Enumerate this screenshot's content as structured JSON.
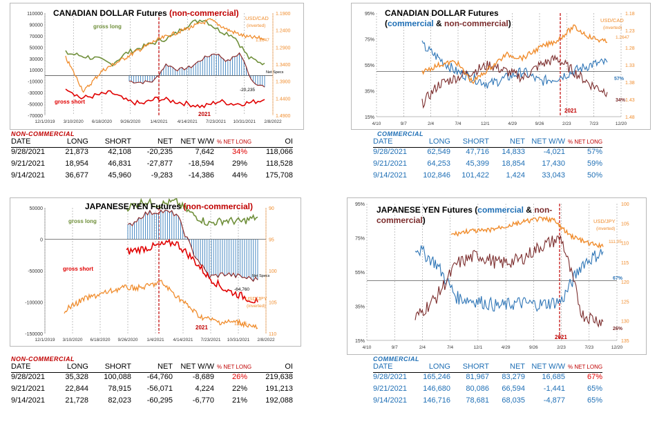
{
  "colors": {
    "gross_long": "#6f8f3a",
    "gross_short": "#e00000",
    "net": "#8a2b2b",
    "fx": "#f08c2c",
    "net_bar": "#1f6fb5",
    "commercial": "#2e75b6",
    "noncommercial": "#7b2c2c",
    "line_2021": "#c00000"
  },
  "cad_nc": {
    "title_black": "CANADIAN DOLLAR Futures ",
    "title_red": "(non-commercial)",
    "label_long": "gross long",
    "label_short": "gross short",
    "label_net": "Net Specs",
    "label_year": "2021",
    "label_fx": "USD/CAD",
    "label_fx_sub": "(inverted)",
    "fx_last": "1.2647",
    "net_last": "-20,235"
  },
  "cad_c": {
    "title_1": "CANADIAN DOLLAR Futures",
    "title_2a": "(",
    "title_comm": "commercial",
    "title_amp": " & ",
    "title_nc": "non-commercial",
    "title_2b": ")",
    "label_fx": "USD/CAD",
    "label_fx_sub": "(inverted)",
    "fx_last": "1.2647",
    "label_year": "2021",
    "comm_last": "57%",
    "nc_last": "34%"
  },
  "jpy_nc": {
    "title_black": "JAPANESE YEN Futures ",
    "title_red": "(non-commercial)",
    "label_long": "gross long",
    "label_short": "gross short",
    "label_net": "Net Specs",
    "label_year": "2021",
    "label_fx": "USD/JPY",
    "label_fx_sub": "(inverted)",
    "fx_last": "111.05",
    "net_last": "-64,760"
  },
  "jpy_c": {
    "title_1a": "JAPANESE YEN Futures  (",
    "title_comm": "commercial",
    "title_amp": " & ",
    "title_nc1": "non-",
    "title_nc2": "commercial",
    "title_2b": ")",
    "label_fx": "USD/JPY",
    "label_fx_sub": "(inverted)",
    "fx_last": "111.05",
    "label_year": "2021",
    "comm_last": "67%",
    "nc_last": "26%"
  },
  "chart_data": [
    {
      "type": "line",
      "title": "CANADIAN DOLLAR Futures (non-commercial)",
      "x_ticks": [
        "12/1/2019",
        "3/10/2020",
        "6/18/2020",
        "9/26/2020",
        "1/4/2021",
        "4/14/2021",
        "7/23/2021",
        "10/31/2021",
        "2/8/2022"
      ],
      "y_ticks": [
        "110000",
        "90000",
        "70000",
        "50000",
        "30000",
        "10000",
        "-10000",
        "-30000",
        "-50000",
        "-70000"
      ],
      "y2_ticks": [
        "1.1900",
        "1.2400",
        "1.2900",
        "1.3400",
        "1.3900",
        "1.4400",
        "1.4900"
      ],
      "ylim": [
        -70000,
        110000
      ],
      "y2lim": [
        1.19,
        1.49
      ],
      "y2_inverted": true,
      "series": [
        {
          "name": "gross long",
          "y": [
            40000,
            35000,
            30000,
            20000,
            40000,
            50000,
            60000,
            70000,
            90000,
            100000,
            80000,
            70000,
            30000,
            21873
          ]
        },
        {
          "name": "gross short",
          "y": [
            -20000,
            -40000,
            -35000,
            -30000,
            -45000,
            -50000,
            -40000,
            -45000,
            -50000,
            -55000,
            -45000,
            -50000,
            -48000,
            -42108
          ]
        },
        {
          "name": "Net Specs",
          "y": [
            -10000,
            -12000,
            -10000,
            20000,
            10000,
            15000,
            30000,
            40000,
            25000,
            40000,
            -10000,
            -20235
          ]
        },
        {
          "name": "USD/CAD",
          "y": [
            1.32,
            1.42,
            1.36,
            1.33,
            1.3,
            1.27,
            1.25,
            1.23,
            1.21,
            1.24,
            1.26,
            1.2647
          ]
        }
      ]
    },
    {
      "type": "line",
      "title": "CANADIAN DOLLAR Futures (commercial & non-commercial)",
      "x_ticks": [
        "4/10",
        "9/7",
        "2/4",
        "7/4",
        "12/1",
        "4/29",
        "9/26",
        "2/23",
        "7/23",
        "12/20"
      ],
      "y_ticks": [
        "95%",
        "75%",
        "55%",
        "35%",
        "15%"
      ],
      "y2_ticks": [
        "1.18",
        "1.23",
        "1.28",
        "1.33",
        "1.38",
        "1.43",
        "1.48"
      ],
      "ylim": [
        15,
        95
      ],
      "y2lim": [
        1.18,
        1.48
      ],
      "y2_inverted": true,
      "series": [
        {
          "name": "commercial",
          "y": [
            70,
            60,
            50,
            45,
            40,
            45,
            50,
            42,
            45,
            50,
            55,
            57
          ]
        },
        {
          "name": "non-commercial",
          "y": [
            25,
            40,
            45,
            50,
            55,
            50,
            45,
            55,
            60,
            50,
            40,
            34
          ]
        },
        {
          "name": "USD/CAD",
          "y": [
            1.35,
            1.33,
            1.32,
            1.38,
            1.34,
            1.3,
            1.31,
            1.28,
            1.26,
            1.22,
            1.25,
            1.2647
          ]
        }
      ]
    },
    {
      "type": "line",
      "title": "JAPANESE YEN Futures (non-commercial)",
      "x_ticks": [
        "12/1/2019",
        "3/10/2020",
        "6/18/2020",
        "9/26/2020",
        "1/4/2021",
        "4/14/2021",
        "7/23/2021",
        "10/31/2021",
        "2/8/2022"
      ],
      "y_ticks": [
        "50000",
        "0",
        "-50000",
        "-100000",
        "-150000"
      ],
      "y2_ticks": [
        "90",
        "95",
        "100",
        "105",
        "110"
      ],
      "ylim": [
        -150000,
        50000
      ],
      "y2lim": [
        90,
        112
      ],
      "y2_inverted": true,
      "series": [
        {
          "name": "gross long",
          "y": [
            50000,
            60000,
            55000,
            60000,
            40000,
            25000,
            30000,
            28000,
            35328
          ]
        },
        {
          "name": "gross short",
          "y": [
            -20000,
            -15000,
            -10000,
            -5000,
            -30000,
            -60000,
            -80000,
            -90000,
            -100088
          ]
        },
        {
          "name": "Net Specs",
          "y": [
            20000,
            40000,
            45000,
            40000,
            -20000,
            -60000,
            -55000,
            -60000,
            -64760
          ]
        },
        {
          "name": "USD/JPY",
          "y": [
            108,
            106,
            105,
            104,
            104,
            103,
            106,
            109,
            110,
            110,
            111.05
          ]
        }
      ]
    },
    {
      "type": "line",
      "title": "JAPANESE YEN Futures (commercial & non-commercial)",
      "x_ticks": [
        "4/10",
        "9/7",
        "2/4",
        "7/4",
        "12/1",
        "4/29",
        "9/26",
        "2/23",
        "7/23",
        "12/20"
      ],
      "y_ticks": [
        "95%",
        "75%",
        "55%",
        "35%",
        "15%"
      ],
      "y2_ticks": [
        "100",
        "105",
        "110",
        "115",
        "120",
        "125",
        "130",
        "135"
      ],
      "ylim": [
        15,
        95
      ],
      "y2lim": [
        100,
        135
      ],
      "y2_inverted": true,
      "series": [
        {
          "name": "commercial",
          "y": [
            70,
            60,
            40,
            38,
            35,
            37,
            36,
            38,
            60,
            67
          ]
        },
        {
          "name": "non-commercial",
          "y": [
            28,
            40,
            60,
            65,
            60,
            62,
            70,
            75,
            30,
            26
          ]
        },
        {
          "name": "USD/JPY",
          "y": [
            108,
            107,
            107,
            106,
            105,
            104,
            104,
            108,
            110,
            111.05
          ]
        }
      ]
    }
  ],
  "tables": {
    "cad_nc": {
      "label": "NON-COMMERCIAL",
      "headers": [
        "DATE",
        "LONG",
        "SHORT",
        "NET",
        "NET W/W",
        "% NET LONG",
        "OI"
      ],
      "rows": [
        [
          "9/28/2021",
          "21,873",
          "42,108",
          "-20,235",
          "7,642",
          "34%",
          "118,066"
        ],
        [
          "9/21/2021",
          "18,954",
          "46,831",
          "-27,877",
          "-18,594",
          "29%",
          "118,528"
        ],
        [
          "9/14/2021",
          "36,677",
          "45,960",
          "-9,283",
          "-14,386",
          "44%",
          "175,708"
        ]
      ]
    },
    "cad_c": {
      "label": "COMMERCIAL",
      "headers": [
        "DATE",
        "LONG",
        "SHORT",
        "NET",
        "NET W/W",
        "% NET LONG"
      ],
      "rows": [
        [
          "9/28/2021",
          "62,549",
          "47,716",
          "14,833",
          "-4,021",
          "57%"
        ],
        [
          "9/21/2021",
          "64,253",
          "45,399",
          "18,854",
          "17,430",
          "59%"
        ],
        [
          "9/14/2021",
          "102,846",
          "101,422",
          "1,424",
          "33,043",
          "50%"
        ]
      ]
    },
    "jpy_nc": {
      "label": "NON-COMMERCIAL",
      "headers": [
        "DATE",
        "LONG",
        "SHORT",
        "NET",
        "NET W/W",
        "% NET LONG",
        "OI"
      ],
      "rows": [
        [
          "9/28/2021",
          "35,328",
          "100,088",
          "-64,760",
          "-8,689",
          "26%",
          "219,638"
        ],
        [
          "9/21/2021",
          "22,844",
          "78,915",
          "-56,071",
          "4,224",
          "22%",
          "191,213"
        ],
        [
          "9/14/2021",
          "21,728",
          "82,023",
          "-60,295",
          "-6,770",
          "21%",
          "192,088"
        ]
      ]
    },
    "jpy_c": {
      "label": "COMMERCIAL",
      "headers": [
        "DATE",
        "LONG",
        "SHORT",
        "NET",
        "NET W/W",
        "% NET LONG"
      ],
      "rows": [
        [
          "9/28/2021",
          "165,246",
          "81,967",
          "83,279",
          "16,685",
          "67%"
        ],
        [
          "9/21/2021",
          "146,680",
          "80,086",
          "66,594",
          "-1,441",
          "65%"
        ],
        [
          "9/14/2021",
          "146,716",
          "78,681",
          "68,035",
          "-4,877",
          "65%"
        ]
      ]
    }
  }
}
